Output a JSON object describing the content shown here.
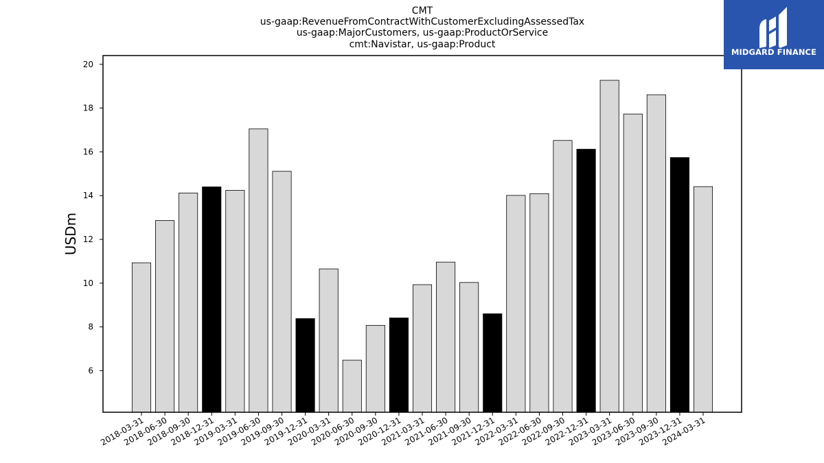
{
  "chart_data": {
    "type": "bar",
    "title_lines": [
      "CMT",
      "us-gaap:RevenueFromContractWithCustomerExcludingAssessedTax",
      "us-gaap:MajorCustomers, us-gaap:ProductOrService",
      "cmt:Navistar, us-gaap:Product"
    ],
    "xlabel": "",
    "ylabel": "USDm",
    "ylim": [
      4.1,
      20.4
    ],
    "yticks": [
      6,
      8,
      10,
      12,
      14,
      16,
      18,
      20
    ],
    "categories": [
      "2018-03-31",
      "2018-06-30",
      "2018-09-30",
      "2018-12-31",
      "2019-03-31",
      "2019-06-30",
      "2019-09-30",
      "2019-12-31",
      "2020-03-31",
      "2020-06-30",
      "2020-09-30",
      "2020-12-31",
      "2021-03-31",
      "2021-06-30",
      "2021-09-30",
      "2021-12-31",
      "2022-03-31",
      "2022-06-30",
      "2022-09-30",
      "2022-12-31",
      "2023-03-31",
      "2023-06-30",
      "2023-09-30",
      "2023-12-31",
      "2024-03-31"
    ],
    "values": [
      10.93,
      12.86,
      14.12,
      14.4,
      14.24,
      17.05,
      15.11,
      8.38,
      10.65,
      6.48,
      8.07,
      8.41,
      9.93,
      10.96,
      10.03,
      8.6,
      14.01,
      14.09,
      16.52,
      16.12,
      19.27,
      17.73,
      18.61,
      15.74,
      14.41
    ],
    "highlight": [
      false,
      false,
      false,
      true,
      false,
      false,
      false,
      true,
      false,
      false,
      false,
      true,
      false,
      false,
      false,
      true,
      false,
      false,
      false,
      true,
      false,
      false,
      false,
      true,
      false
    ],
    "colors": {
      "bar": "#d8d8d8",
      "highlight": "#000000",
      "edge": "#000000"
    },
    "grid": false,
    "legend": "none"
  },
  "logo": {
    "text": "MIDGARD FINANCE",
    "background": "#2a55ae"
  }
}
